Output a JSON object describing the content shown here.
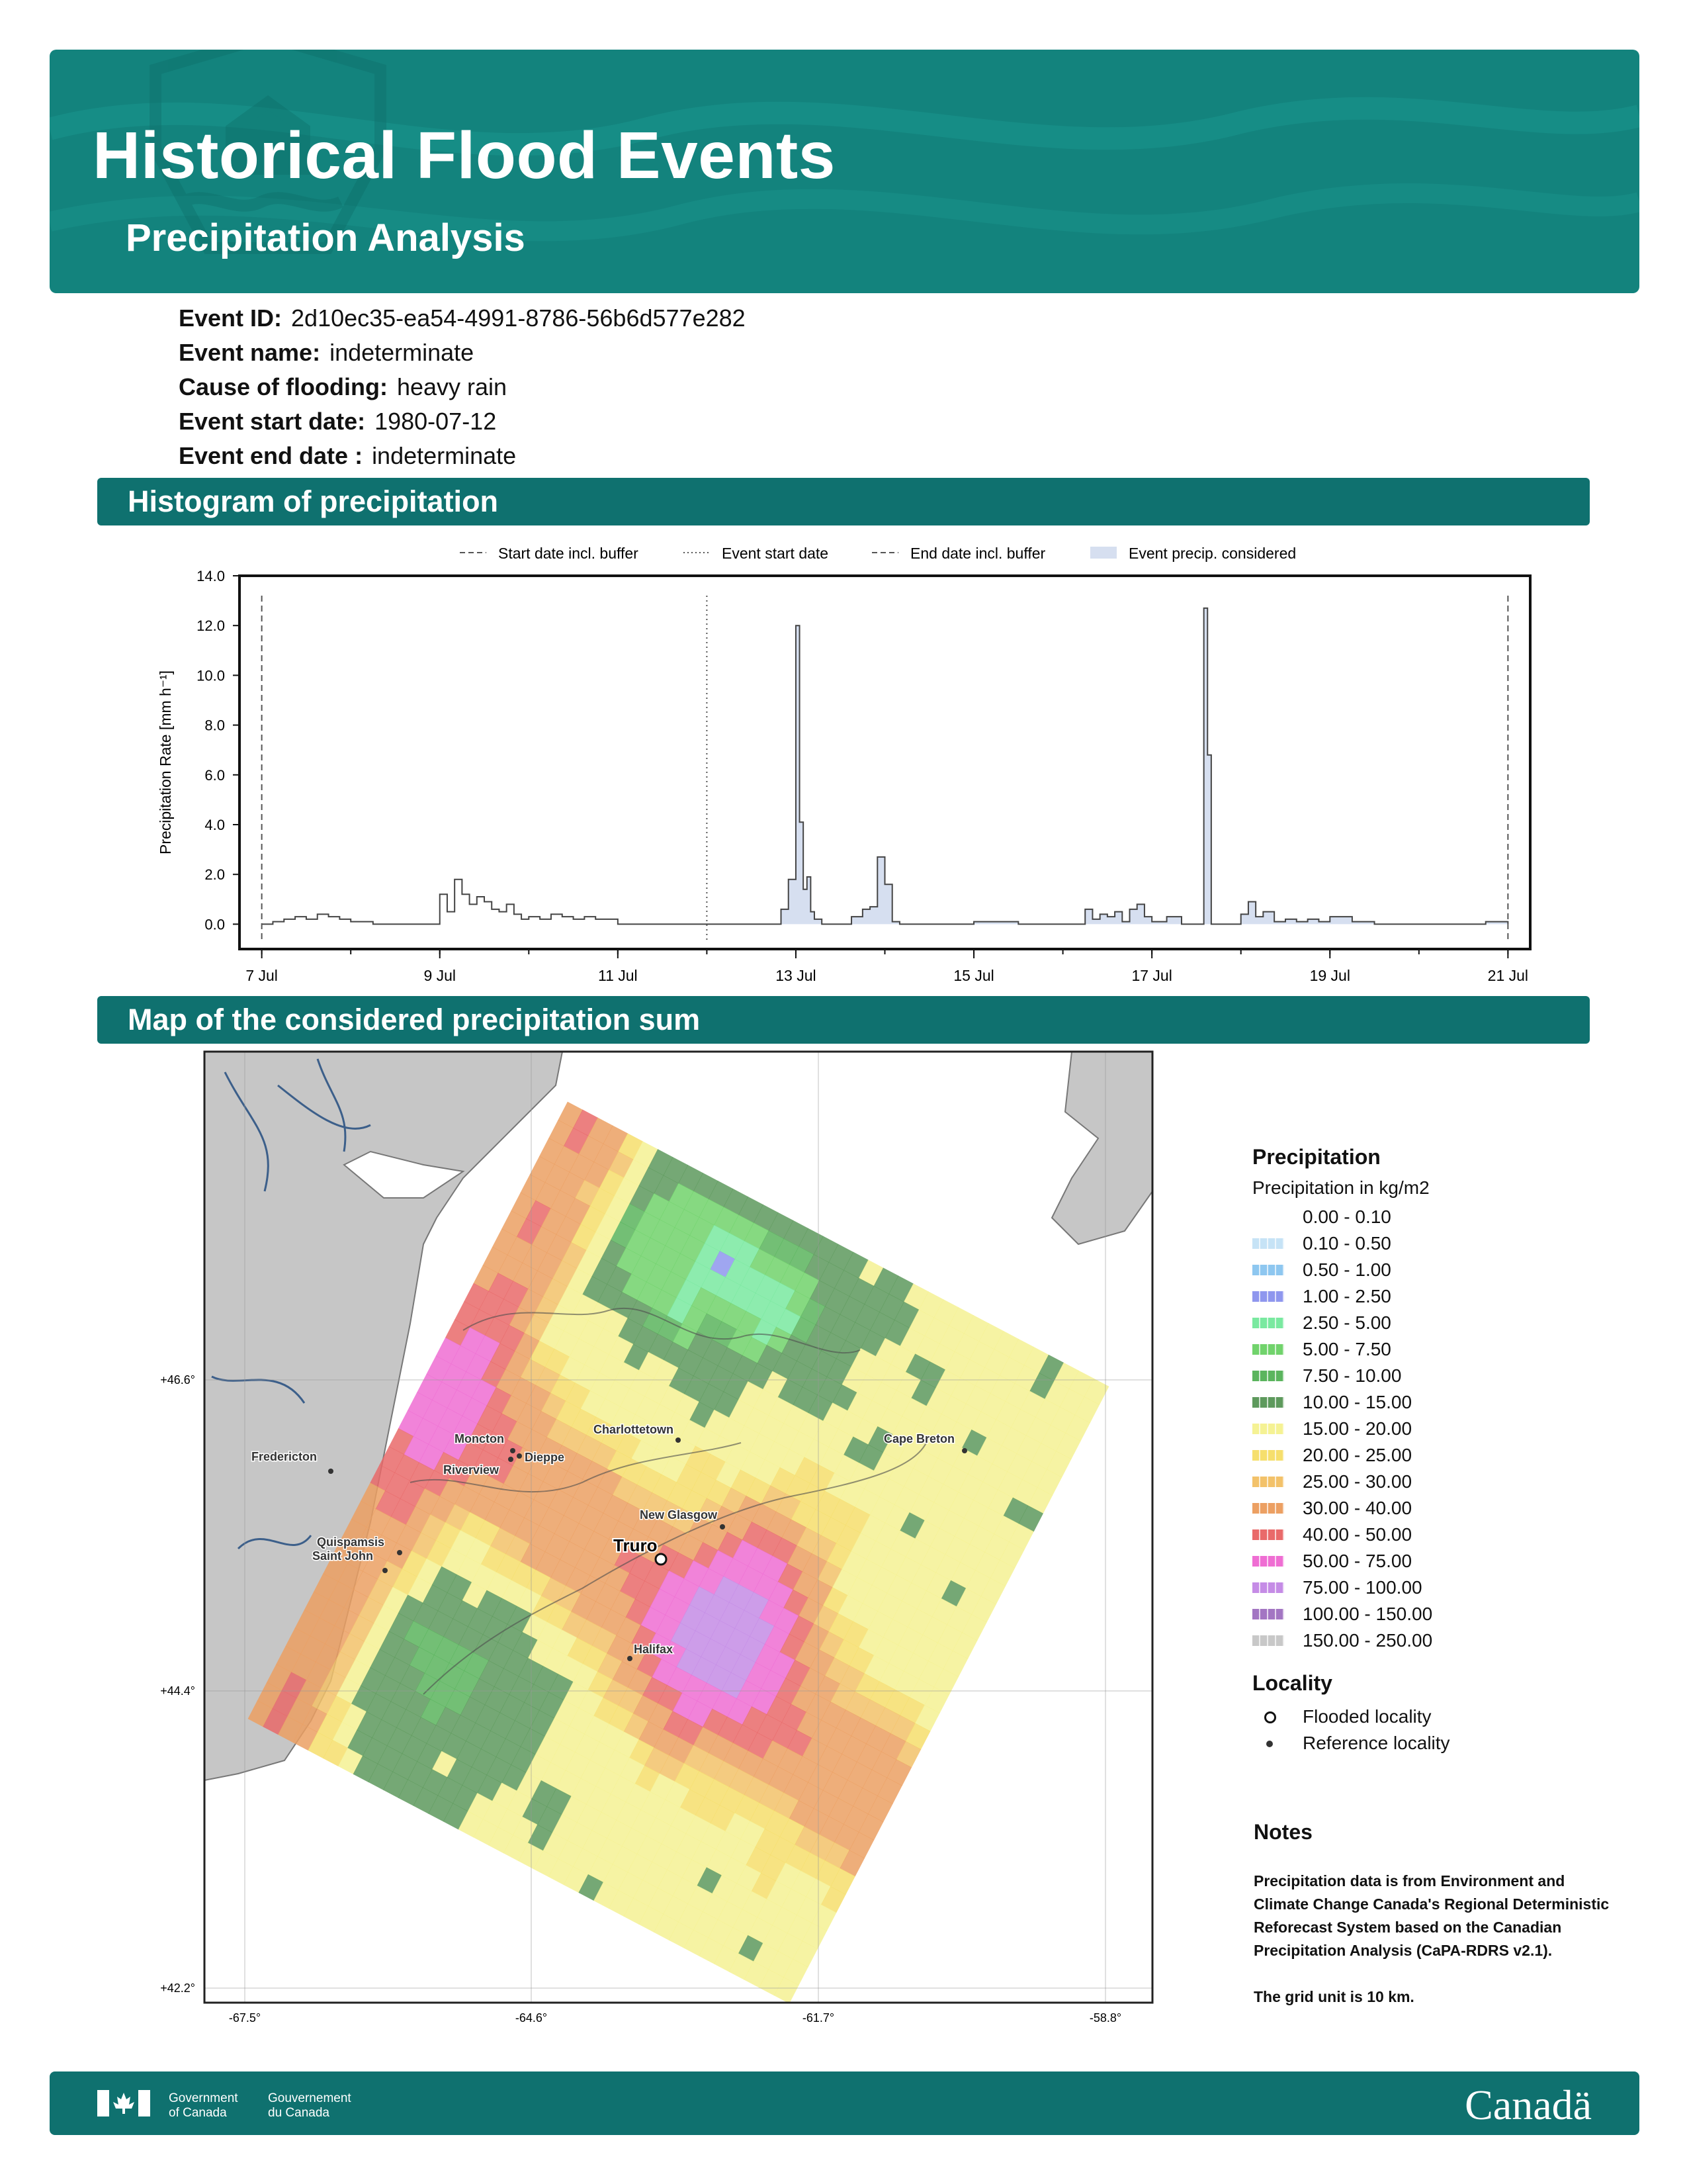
{
  "header": {
    "title": "Historical Flood Events",
    "subtitle": "Precipitation Analysis",
    "background_color": "#13837d",
    "icon": "house-on-water-icon"
  },
  "event": [
    {
      "label": "Event ID:",
      "value": "2d10ec35-ea54-4991-8786-56b6d577e282"
    },
    {
      "label": "Event name:",
      "value": "indeterminate"
    },
    {
      "label": "Cause of flooding:",
      "value": "heavy rain"
    },
    {
      "label": "Event start date:",
      "value": "1980-07-12"
    },
    {
      "label": "Event end date :",
      "value": "indeterminate"
    }
  ],
  "sections": {
    "histogram": "Histogram of precipitation",
    "map": "Map of the considered precipitation sum"
  },
  "chart_data": {
    "type": "line",
    "ylabel": "Precipitation Rate [mm h⁻¹]",
    "ylim": [
      -1,
      14
    ],
    "yticks": [
      "0.0",
      "2.0",
      "4.0",
      "6.0",
      "8.0",
      "10.0",
      "12.0",
      "14.0"
    ],
    "xlim": [
      "1980-07-06T18:00",
      "1980-07-21T06:00"
    ],
    "xticks": [
      {
        "label": "7 Jul",
        "date": "1980-07-07"
      },
      {
        "label": "9 Jul",
        "date": "1980-07-09"
      },
      {
        "label": "11 Jul",
        "date": "1980-07-11"
      },
      {
        "label": "13 Jul",
        "date": "1980-07-13"
      },
      {
        "label": "15 Jul",
        "date": "1980-07-15"
      },
      {
        "label": "17 Jul",
        "date": "1980-07-17"
      },
      {
        "label": "19 Jul",
        "date": "1980-07-19"
      },
      {
        "label": "21 Jul",
        "date": "1980-07-21"
      }
    ],
    "legend": [
      {
        "label": "Start date incl. buffer",
        "style": "dashed"
      },
      {
        "label": "Event start date",
        "style": "dotted"
      },
      {
        "label": "End date incl. buffer",
        "style": "dashed"
      },
      {
        "label": "Event precip. considered",
        "style": "fill"
      }
    ],
    "legend_position": "top",
    "vlines": [
      {
        "date": "1980-07-07T00:00",
        "style": "dashed"
      },
      {
        "date": "1980-07-12T00:00",
        "style": "dotted"
      },
      {
        "date": "1980-07-21T00:00",
        "style": "dashed"
      }
    ],
    "fill_range": [
      "1980-07-12T00:00",
      "1980-07-21T00:00"
    ],
    "fill_color": "#d6dff0",
    "series": [
      {
        "x": [
          "1980-07-07T00:00",
          "1980-07-07T03:00",
          "1980-07-07T06:00",
          "1980-07-07T09:00",
          "1980-07-07T12:00",
          "1980-07-07T15:00",
          "1980-07-07T18:00",
          "1980-07-07T21:00",
          "1980-07-08T00:00",
          "1980-07-08T06:00",
          "1980-07-08T12:00",
          "1980-07-09T00:00",
          "1980-07-09T02:00",
          "1980-07-09T04:00",
          "1980-07-09T06:00",
          "1980-07-09T08:00",
          "1980-07-09T10:00",
          "1980-07-09T12:00",
          "1980-07-09T14:00",
          "1980-07-09T16:00",
          "1980-07-09T18:00",
          "1980-07-09T20:00",
          "1980-07-09T22:00",
          "1980-07-10T00:00",
          "1980-07-10T03:00",
          "1980-07-10T06:00",
          "1980-07-10T09:00",
          "1980-07-10T12:00",
          "1980-07-10T15:00",
          "1980-07-10T18:00",
          "1980-07-11T00:00",
          "1980-07-12T00:00",
          "1980-07-12T12:00",
          "1980-07-12T20:00",
          "1980-07-12T22:00",
          "1980-07-13T00:00",
          "1980-07-13T01:00",
          "1980-07-13T02:00",
          "1980-07-13T03:00",
          "1980-07-13T04:00",
          "1980-07-13T05:00",
          "1980-07-13T07:00",
          "1980-07-13T10:00",
          "1980-07-13T15:00",
          "1980-07-13T18:00",
          "1980-07-13T20:00",
          "1980-07-13T22:00",
          "1980-07-14T00:00",
          "1980-07-14T02:00",
          "1980-07-14T04:00",
          "1980-07-14T08:00",
          "1980-07-15T00:00",
          "1980-07-15T12:00",
          "1980-07-16T00:00",
          "1980-07-16T06:00",
          "1980-07-16T08:00",
          "1980-07-16T10:00",
          "1980-07-16T12:00",
          "1980-07-16T14:00",
          "1980-07-16T16:00",
          "1980-07-16T18:00",
          "1980-07-16T20:00",
          "1980-07-16T22:00",
          "1980-07-17T00:00",
          "1980-07-17T04:00",
          "1980-07-17T08:00",
          "1980-07-17T14:00",
          "1980-07-17T15:00",
          "1980-07-17T16:00",
          "1980-07-17T17:00",
          "1980-07-17T19:00",
          "1980-07-18T00:00",
          "1980-07-18T02:00",
          "1980-07-18T04:00",
          "1980-07-18T06:00",
          "1980-07-18T09:00",
          "1980-07-18T12:00",
          "1980-07-18T15:00",
          "1980-07-18T18:00",
          "1980-07-18T21:00",
          "1980-07-19T00:00",
          "1980-07-19T06:00",
          "1980-07-19T12:00",
          "1980-07-20T00:00",
          "1980-07-20T12:00",
          "1980-07-20T18:00",
          "1980-07-20T20:00",
          "1980-07-21T00:00"
        ],
        "y": [
          0.0,
          0.1,
          0.2,
          0.3,
          0.2,
          0.4,
          0.3,
          0.2,
          0.1,
          0.0,
          0.0,
          1.2,
          0.5,
          1.8,
          1.2,
          0.8,
          1.1,
          0.9,
          0.6,
          0.5,
          0.8,
          0.4,
          0.2,
          0.3,
          0.2,
          0.4,
          0.3,
          0.2,
          0.3,
          0.2,
          0.0,
          0.0,
          0.0,
          0.6,
          1.8,
          12.0,
          4.1,
          1.4,
          1.9,
          0.5,
          0.2,
          0.0,
          0.0,
          0.3,
          0.6,
          0.7,
          2.7,
          1.6,
          0.1,
          0.0,
          0.0,
          0.1,
          0.0,
          0.0,
          0.6,
          0.2,
          0.4,
          0.3,
          0.5,
          0.1,
          0.6,
          0.8,
          0.3,
          0.1,
          0.3,
          0.0,
          12.7,
          6.8,
          0.0,
          0.0,
          0.0,
          0.4,
          0.9,
          0.3,
          0.5,
          0.1,
          0.2,
          0.1,
          0.2,
          0.1,
          0.3,
          0.1,
          0.0,
          0.0,
          0.0,
          0.1,
          0.1,
          0.0
        ]
      }
    ]
  },
  "map": {
    "lon_ticks": [
      "-67.5°",
      "-64.6°",
      "-61.7°",
      "-58.8°"
    ],
    "lat_ticks": [
      "+46.6°",
      "+44.4°",
      "+42.2°"
    ],
    "localities": [
      {
        "name": "Fredericton",
        "kind": "reference"
      },
      {
        "name": "Moncton",
        "kind": "reference"
      },
      {
        "name": "Dieppe",
        "kind": "reference"
      },
      {
        "name": "Riverview",
        "kind": "reference"
      },
      {
        "name": "Charlottetown",
        "kind": "reference"
      },
      {
        "name": "Cape Breton",
        "kind": "reference"
      },
      {
        "name": "New Glasgow",
        "kind": "reference"
      },
      {
        "name": "Quispamsis",
        "kind": "reference"
      },
      {
        "name": "Saint John",
        "kind": "reference"
      },
      {
        "name": "Truro",
        "kind": "flooded"
      },
      {
        "name": "Halifax",
        "kind": "reference"
      }
    ]
  },
  "legend": {
    "title": "Precipitation",
    "subtitle": "Precipitation in kg/m2",
    "items": [
      {
        "label": "0.00 - 0.10",
        "color": "#ffffff"
      },
      {
        "label": "0.10 - 0.50",
        "color": "#c6e3f6"
      },
      {
        "label": "0.50 - 1.00",
        "color": "#8ec7f0"
      },
      {
        "label": "1.00 - 2.50",
        "color": "#8f97ee"
      },
      {
        "label": "2.50 - 5.00",
        "color": "#7ae9a0"
      },
      {
        "label": "5.00 - 7.50",
        "color": "#71d36c"
      },
      {
        "label": "7.50 - 10.00",
        "color": "#5bb55e"
      },
      {
        "label": "10.00 - 15.00",
        "color": "#5e9a5d"
      },
      {
        "label": "15.00 - 20.00",
        "color": "#f5f294"
      },
      {
        "label": "20.00 - 25.00",
        "color": "#f6df6d"
      },
      {
        "label": "25.00 - 30.00",
        "color": "#f3c26a"
      },
      {
        "label": "30.00 - 40.00",
        "color": "#eca063"
      },
      {
        "label": "40.00 - 50.00",
        "color": "#e96a6a"
      },
      {
        "label": "50.00 - 75.00",
        "color": "#ef6ed3"
      },
      {
        "label": "75.00 - 100.00",
        "color": "#c58ce6"
      },
      {
        "label": "100.00 - 150.00",
        "color": "#a376c3"
      },
      {
        "label": "150.00 - 250.00",
        "color": "#c8c8c8"
      }
    ],
    "locality_title": "Locality",
    "locality_items": [
      {
        "label": "Flooded locality",
        "icon": "open-circle-icon"
      },
      {
        "label": "Reference locality",
        "icon": "filled-dot-icon"
      }
    ]
  },
  "notes": {
    "title": "Notes",
    "text": "Precipitation data is from Environment and Climate Change Canada's Regional Deterministic Reforecast System based on the Canadian Precipitation Analysis (CaPA-RDRS v2.1).",
    "grid": "The grid unit is 10 km."
  },
  "footer": {
    "gov_en_1": "Government",
    "gov_en_2": "of Canada",
    "gov_fr_1": "Gouvernement",
    "gov_fr_2": "du Canada",
    "wordmark": "Canadä",
    "color": "#0f716f"
  }
}
